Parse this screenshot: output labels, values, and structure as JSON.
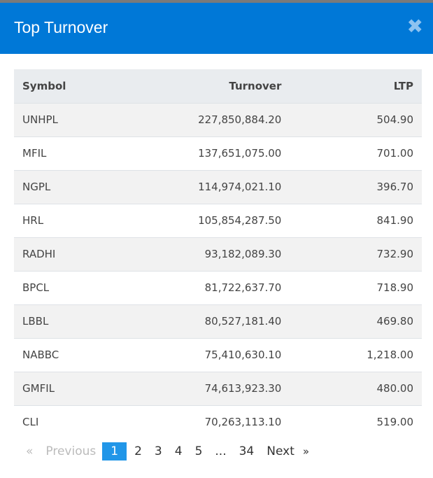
{
  "modal": {
    "title": "Top Turnover",
    "close_icon": "close-icon",
    "header_color": "#0078d7"
  },
  "table": {
    "columns": [
      "Symbol",
      "Turnover",
      "LTP"
    ],
    "rows": [
      [
        "UNHPL",
        "227,850,884.20",
        "504.90"
      ],
      [
        "MFIL",
        "137,651,075.00",
        "701.00"
      ],
      [
        "NGPL",
        "114,974,021.10",
        "396.70"
      ],
      [
        "HRL",
        "105,854,287.50",
        "841.90"
      ],
      [
        "RADHI",
        "93,182,089.30",
        "732.90"
      ],
      [
        "BPCL",
        "81,722,637.70",
        "718.90"
      ],
      [
        "LBBL",
        "80,527,181.40",
        "469.80"
      ],
      [
        "NABBC",
        "75,410,630.10",
        "1,218.00"
      ],
      [
        "GMFIL",
        "74,613,923.30",
        "480.00"
      ],
      [
        "CLI",
        "70,263,113.10",
        "519.00"
      ]
    ]
  },
  "pagination": {
    "prev_arrow": "«",
    "prev": "Previous",
    "pages": [
      "1",
      "2",
      "3",
      "4",
      "5",
      "...",
      "34"
    ],
    "active": "1",
    "next": "Next",
    "next_arrow": "»"
  }
}
